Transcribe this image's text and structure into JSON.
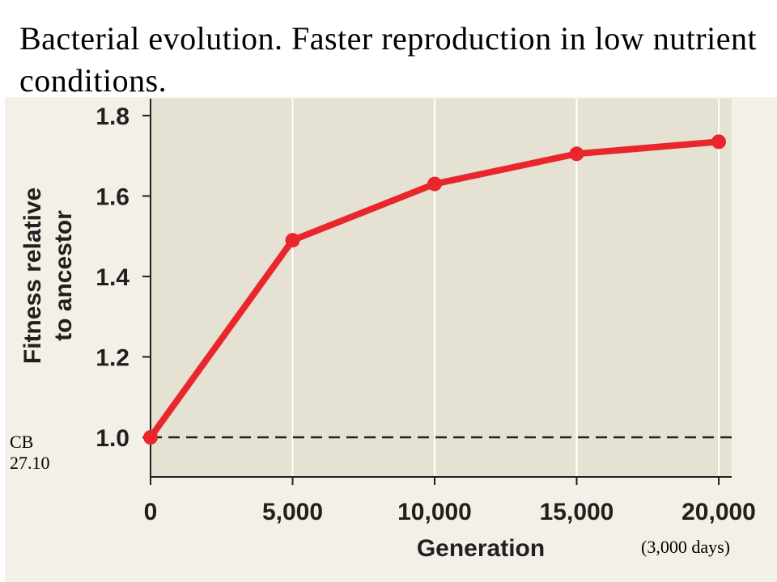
{
  "slide": {
    "title": "Bacterial evolution.  Faster reproduction in low nutrient conditions.",
    "ref_line1": "CB",
    "ref_line2": "27.10",
    "duration_note": "(3,000 days)"
  },
  "colors": {
    "plot_bg": "#e6e2d3",
    "page_bg": "#f3f0e7",
    "series": "#e8262b",
    "reference_line": "#231f20"
  },
  "chart_data": {
    "type": "line",
    "xlabel": "Generation",
    "ylabel_lines": [
      "Fitness relative",
      "to ancestor"
    ],
    "x": [
      0,
      5000,
      10000,
      15000,
      20000
    ],
    "xticks": [
      0,
      5000,
      10000,
      15000,
      20000
    ],
    "xtick_labels": [
      "0",
      "5,000",
      "10,000",
      "15,000",
      "20,000"
    ],
    "xlim": [
      0,
      20500
    ],
    "yticks": [
      1.0,
      1.2,
      1.4,
      1.6,
      1.8
    ],
    "ytick_labels": [
      "1.0",
      "1.2",
      "1.4",
      "1.6",
      "1.8"
    ],
    "ylim": [
      0.9,
      1.83
    ],
    "series": [
      {
        "values": [
          1.0,
          1.49,
          1.63,
          1.705,
          1.735
        ]
      }
    ],
    "reference_line": {
      "y": 1.0,
      "style": "dashed"
    },
    "grid": "vertical"
  }
}
